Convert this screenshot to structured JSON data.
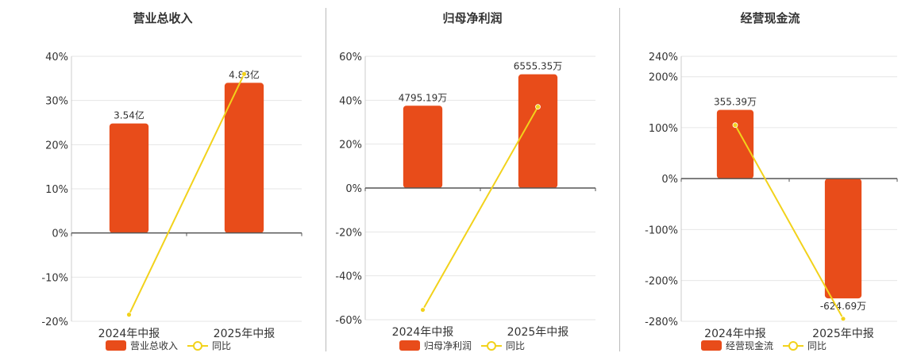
{
  "colors": {
    "bar": "#e84c1a",
    "line": "#f2d21b"
  },
  "chart_data": [
    {
      "type": "bar",
      "title": "营业总收入",
      "categories": [
        "2024年中报",
        "2025年中报"
      ],
      "series": [
        {
          "name": "营业总收入",
          "type": "bar",
          "values": [
            24.8,
            34.0
          ],
          "labels": [
            "3.54亿",
            "4.83亿"
          ]
        },
        {
          "name": "同比",
          "type": "line",
          "values": [
            -18.5,
            36.0
          ]
        }
      ],
      "yticks": [
        40,
        30,
        20,
        10,
        0,
        -10,
        -20
      ],
      "tick_suffix": "%",
      "ylim": [
        -20,
        40
      ],
      "legend": "bottom"
    },
    {
      "type": "bar",
      "title": "归母净利润",
      "categories": [
        "2024年中报",
        "2025年中报"
      ],
      "series": [
        {
          "name": "归母净利润",
          "type": "bar",
          "values": [
            37.5,
            51.8
          ],
          "labels": [
            "4795.19万",
            "6555.35万"
          ]
        },
        {
          "name": "同比",
          "type": "line",
          "values": [
            -55.5,
            37.0
          ]
        }
      ],
      "yticks": [
        60,
        40,
        20,
        0,
        -20,
        -40,
        -60
      ],
      "tick_suffix": "%",
      "ylim": [
        -60,
        60
      ],
      "legend": "bottom"
    },
    {
      "type": "bar",
      "title": "经营现金流",
      "categories": [
        "2024年中报",
        "2025年中报"
      ],
      "series": [
        {
          "name": "经营现金流",
          "type": "bar",
          "values": [
            135,
            -235
          ],
          "labels": [
            "355.39万",
            "-624.69万"
          ]
        },
        {
          "name": "同比",
          "type": "line",
          "values": [
            105,
            -275
          ]
        }
      ],
      "yticks": [
        240,
        200,
        100,
        0,
        -100,
        -200,
        -280
      ],
      "tick_suffix": "%",
      "ylim": [
        -280,
        240
      ],
      "legend": "bottom"
    }
  ]
}
